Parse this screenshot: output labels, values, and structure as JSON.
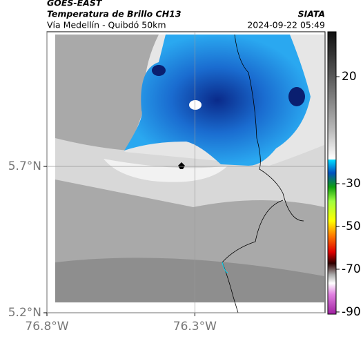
{
  "header": {
    "source": "GOES-EAST",
    "product": "Temperatura de Brillo CH13",
    "org": "SIATA",
    "region": "Vía Medellín - Quibdó 50km",
    "datetime": "2024-09-22 05:49"
  },
  "map": {
    "xlim": [
      -76.8,
      -75.86
    ],
    "ylim": [
      5.2,
      6.16
    ],
    "xticks": [
      {
        "value": -76.8,
        "label": "76.8°W"
      },
      {
        "value": -76.3,
        "label": "76.3°W"
      }
    ],
    "yticks": [
      {
        "value": 5.7,
        "label": "5.7°N"
      },
      {
        "value": 5.2,
        "label": "5.2°N"
      }
    ],
    "colorbar": {
      "lim": [
        -91,
        41
      ],
      "ticks": [
        20,
        -30,
        -50,
        -70,
        -90
      ]
    }
  }
}
